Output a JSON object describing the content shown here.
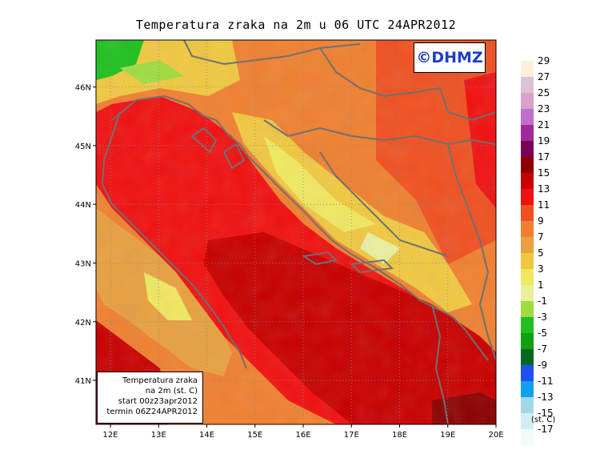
{
  "chart_data": {
    "type": "heatmap",
    "title": "Temperatura zraka na 2m u 06 UTC 24APR2012",
    "xlabel": "",
    "ylabel": "",
    "x_ticks": [
      "12E",
      "13E",
      "14E",
      "15E",
      "16E",
      "17E",
      "18E",
      "19E",
      "20E"
    ],
    "y_ticks": [
      "46N",
      "45N",
      "44N",
      "43N",
      "42N",
      "41N"
    ],
    "lon_range": [
      11.7,
      20.0
    ],
    "lat_range": [
      40.25,
      46.8
    ],
    "grid": true,
    "legend_position": "right",
    "legend_unit": "(st. C)",
    "legend": [
      {
        "label": "29",
        "color": "#fcf0dc"
      },
      {
        "label": "27",
        "color": "#dcc2d4"
      },
      {
        "label": "25",
        "color": "#d8a2cc"
      },
      {
        "label": "23",
        "color": "#c070c8"
      },
      {
        "label": "21",
        "color": "#a02a9c"
      },
      {
        "label": "19",
        "color": "#7a0058"
      },
      {
        "label": "17",
        "color": "#8c0000"
      },
      {
        "label": "15",
        "color": "#c80000"
      },
      {
        "label": "13",
        "color": "#f01010"
      },
      {
        "label": "11",
        "color": "#f05020"
      },
      {
        "label": "9",
        "color": "#f08030"
      },
      {
        "label": "7",
        "color": "#e8a040"
      },
      {
        "label": "5",
        "color": "#f0c840"
      },
      {
        "label": "3",
        "color": "#f0e860"
      },
      {
        "label": "1",
        "color": "#e8f0a0"
      },
      {
        "label": "-1",
        "color": "#a0dc40"
      },
      {
        "label": "-3",
        "color": "#20c020"
      },
      {
        "label": "-5",
        "color": "#10a010"
      },
      {
        "label": "-7",
        "color": "#006a20"
      },
      {
        "label": "-9",
        "color": "#2050f0"
      },
      {
        "label": "-11",
        "color": "#10a0f0"
      },
      {
        "label": "-13",
        "color": "#a0d8e8"
      },
      {
        "label": "-15",
        "color": "#d0eef4"
      },
      {
        "label": "-17",
        "color": "#f0fcfc"
      }
    ],
    "regions": [
      {
        "name": "adriatic-sea",
        "value": 14,
        "color": "#f01010"
      },
      {
        "name": "south-sea",
        "value": 16,
        "color": "#c80000"
      },
      {
        "name": "north-alps",
        "value": -2,
        "color": "#20c020"
      },
      {
        "name": "dinaric-highlands",
        "value": 4,
        "color": "#f0c840"
      },
      {
        "name": "pannonian-plain",
        "value": 10,
        "color": "#f08030"
      },
      {
        "name": "apennines",
        "value": 6,
        "color": "#e8a040"
      }
    ]
  },
  "watermark": "©DHMZ",
  "info_box": {
    "line1": "Temperatura zraka",
    "line2": "na 2m (st. C)",
    "line3": "start 00z23apr2012",
    "line4": "termin 06Z24APR2012"
  }
}
